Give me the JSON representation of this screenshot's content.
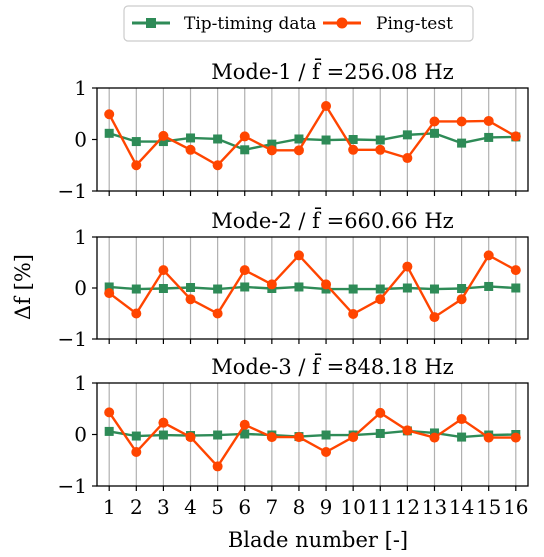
{
  "chart_data": {
    "type": "line",
    "xlabel": "Blade number [-]",
    "ylabel": "Δf [%]",
    "legend": {
      "placement": "top-center",
      "entries": [
        "Tip-timing data",
        "Ping-test"
      ]
    },
    "grid": "vertical",
    "colors": {
      "tip_timing": "#2e8b57",
      "ping_test": "#ff4500"
    },
    "x": [
      1,
      2,
      3,
      4,
      5,
      6,
      7,
      8,
      9,
      10,
      11,
      12,
      13,
      14,
      15,
      16
    ],
    "xticks": [
      "1",
      "2",
      "3",
      "4",
      "5",
      "6",
      "7",
      "8",
      "9",
      "10",
      "11",
      "12",
      "13",
      "14",
      "15",
      "16"
    ],
    "panels": [
      {
        "title": "Mode-1 / f̄ =256.08 Hz",
        "ylim": [
          -1,
          1
        ],
        "yticks": [
          "1",
          "0",
          "−1"
        ],
        "series": [
          {
            "name": "Tip-timing data",
            "values": [
              0.12,
              -0.04,
              -0.04,
              0.03,
              0.01,
              -0.2,
              -0.09,
              0.01,
              -0.01,
              0.0,
              -0.01,
              0.09,
              0.12,
              -0.07,
              0.04,
              0.05
            ]
          },
          {
            "name": "Ping-test",
            "values": [
              0.49,
              -0.5,
              0.07,
              -0.2,
              -0.5,
              0.06,
              -0.21,
              -0.21,
              0.65,
              -0.2,
              -0.2,
              -0.36,
              0.35,
              0.35,
              0.36,
              0.06
            ]
          }
        ]
      },
      {
        "title": "Mode-2 / f̄ =660.66 Hz",
        "ylim": [
          -1,
          1
        ],
        "yticks": [
          "1",
          "0",
          "−1"
        ],
        "series": [
          {
            "name": "Tip-timing data",
            "values": [
              0.02,
              -0.02,
              -0.01,
              0.01,
              -0.02,
              0.02,
              -0.01,
              0.02,
              -0.02,
              -0.02,
              -0.02,
              0.0,
              -0.02,
              -0.01,
              0.03,
              0.0
            ]
          },
          {
            "name": "Ping-test",
            "values": [
              -0.1,
              -0.5,
              0.35,
              -0.22,
              -0.5,
              0.35,
              0.07,
              0.64,
              0.07,
              -0.51,
              -0.22,
              0.42,
              -0.57,
              -0.22,
              0.64,
              0.35
            ]
          }
        ]
      },
      {
        "title": "Mode-3 / f̄ =848.18 Hz",
        "ylim": [
          -1,
          1
        ],
        "yticks": [
          "1",
          "0",
          "−1"
        ],
        "series": [
          {
            "name": "Tip-timing data",
            "values": [
              0.06,
              -0.03,
              -0.01,
              -0.02,
              -0.01,
              0.01,
              -0.01,
              -0.04,
              -0.01,
              -0.01,
              0.02,
              0.07,
              0.03,
              -0.05,
              -0.01,
              0.0
            ]
          },
          {
            "name": "Ping-test",
            "values": [
              0.43,
              -0.34,
              0.23,
              -0.05,
              -0.62,
              0.19,
              -0.05,
              -0.05,
              -0.34,
              -0.05,
              0.42,
              0.08,
              -0.06,
              0.3,
              -0.06,
              -0.06
            ]
          }
        ]
      }
    ]
  }
}
